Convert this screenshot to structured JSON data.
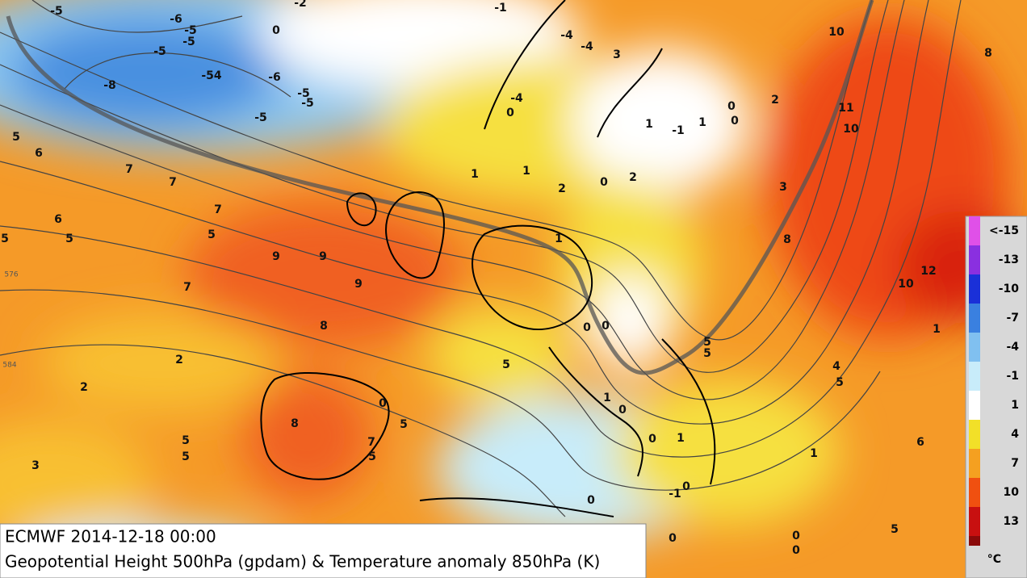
{
  "map": {
    "labels": [
      "-5",
      "-6",
      "-5",
      "-5",
      "-5",
      "-8",
      "-54",
      "-6",
      "-5",
      "-5",
      "-5",
      "0",
      "-2",
      "-1",
      "-4",
      "-4",
      "3",
      "-4",
      "0",
      "1",
      "1",
      "2",
      "0",
      "2",
      "1",
      "-1",
      "1",
      "0",
      "0",
      "2",
      "10",
      "8",
      "11",
      "10",
      "3",
      "8",
      "12",
      "10",
      "1",
      "5",
      "6",
      "7",
      "7",
      "7",
      "6",
      "5",
      "5",
      "5",
      "9",
      "9",
      "9",
      "7",
      "8",
      "2",
      "2",
      "3",
      "8",
      "5",
      "5",
      "7",
      "5",
      "0",
      "5",
      "1",
      "0",
      "0",
      "5",
      "5",
      "5",
      "1",
      "0",
      "0",
      "1",
      "0",
      "-1",
      "0",
      "0",
      "0",
      "0",
      "1",
      "6",
      "5",
      "4",
      "5",
      "576",
      "584"
    ]
  },
  "caption": {
    "line1": "ECMWF 2014-12-18 00:00",
    "line2": "Geopotential Height 500hPa (gpdam) & Temperature anomaly 850hPa (K)"
  },
  "colorbar": {
    "labels": [
      "<-15",
      "-13",
      "-10",
      "-7",
      "-4",
      "-1",
      "1",
      "4",
      "7",
      "10",
      "13"
    ],
    "colors": [
      "#e050e8",
      "#8a30e0",
      "#1a30d8",
      "#3a80e0",
      "#80c0f0",
      "#c8ecfa",
      "#ffffff",
      "#f2e028",
      "#f5a020",
      "#f05010",
      "#c81010"
    ],
    "unit": "°C"
  }
}
